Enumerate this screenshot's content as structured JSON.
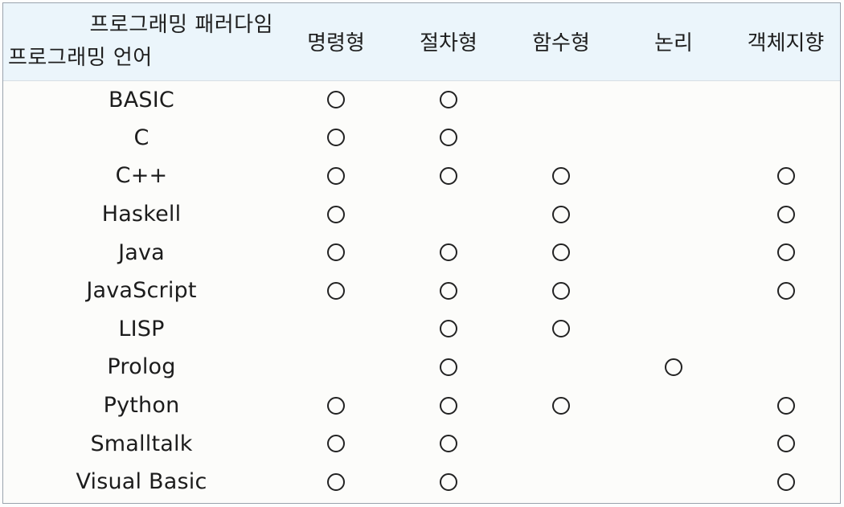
{
  "header": {
    "corner_top": "프로그래밍 패러다임",
    "corner_bottom": "프로그래밍 언어",
    "paradigms": [
      "명령형",
      "절차형",
      "함수형",
      "논리",
      "객체지향"
    ]
  },
  "rows": [
    {
      "language": "BASIC",
      "marks": [
        true,
        true,
        false,
        false,
        false
      ]
    },
    {
      "language": "C",
      "marks": [
        true,
        true,
        false,
        false,
        false
      ]
    },
    {
      "language": "C++",
      "marks": [
        true,
        true,
        true,
        false,
        true
      ]
    },
    {
      "language": "Haskell",
      "marks": [
        true,
        false,
        true,
        false,
        true
      ]
    },
    {
      "language": "Java",
      "marks": [
        true,
        true,
        true,
        false,
        true
      ]
    },
    {
      "language": "JavaScript",
      "marks": [
        true,
        true,
        true,
        false,
        true
      ]
    },
    {
      "language": "LISP",
      "marks": [
        false,
        true,
        true,
        false,
        false
      ]
    },
    {
      "language": "Prolog",
      "marks": [
        false,
        true,
        false,
        true,
        false
      ]
    },
    {
      "language": "Python",
      "marks": [
        true,
        true,
        true,
        false,
        true
      ]
    },
    {
      "language": "Smalltalk",
      "marks": [
        true,
        true,
        false,
        false,
        true
      ]
    },
    {
      "language": "Visual Basic",
      "marks": [
        true,
        true,
        false,
        false,
        true
      ]
    }
  ]
}
